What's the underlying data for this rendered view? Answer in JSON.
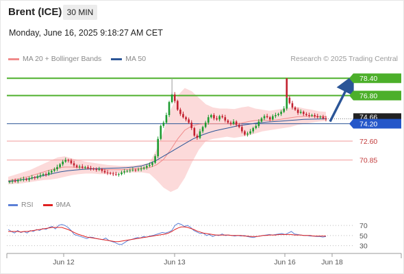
{
  "header": {
    "title": "Brent (ICE)",
    "timeframe": "30 MIN",
    "datetime": "Monday, June 16, 2025 9:18:27 AM CET",
    "credit": "Research © 2025 Trading Central"
  },
  "colors": {
    "candle_up": "#1c9b2f",
    "candle_down": "#c2202f",
    "ma20": "#f08a8a",
    "bb_fill": "#fbd3d3",
    "ma50": "#2b5597",
    "resistance": "#4caf2a",
    "support": "#f29a9a",
    "pivot": "#2b5597",
    "current": "#222222",
    "rsi": "#5b7fd6",
    "rsi_ma": "#e02020",
    "arrow": "#2b5597"
  },
  "chart_data": [
    {
      "type": "candlestick",
      "title": "Brent (ICE)",
      "timeframe": "30 MIN",
      "legend": [
        {
          "name": "MA 20 + Bollinger Bands",
          "color": "#f08a8a"
        },
        {
          "name": "MA 50",
          "color": "#2b5597"
        }
      ],
      "x_tick_labels": [
        "Jun 12",
        "Jun 13",
        "Jun 16",
        "Jun 18"
      ],
      "ylim": [
        67.6,
        79.3
      ],
      "levels": [
        {
          "label": "78.40",
          "value": 78.4,
          "kind": "resistance"
        },
        {
          "label": "76.80",
          "value": 76.8,
          "kind": "resistance"
        },
        {
          "label": "74.66",
          "value": 74.66,
          "kind": "current"
        },
        {
          "label": "74.20",
          "value": 74.2,
          "kind": "pivot"
        },
        {
          "label": "72.60",
          "value": 72.6,
          "kind": "support"
        },
        {
          "label": "70.85",
          "value": 70.85,
          "kind": "support"
        }
      ],
      "projection": {
        "direction": "up",
        "from": 74.4,
        "to": 78.4
      },
      "closes": [
        68.85,
        68.92,
        68.88,
        69.0,
        69.05,
        69.1,
        69.02,
        69.15,
        69.25,
        69.2,
        69.35,
        69.45,
        69.55,
        69.5,
        69.7,
        69.85,
        70.0,
        70.2,
        70.45,
        70.7,
        70.85,
        70.8,
        70.55,
        70.35,
        70.2,
        70.25,
        70.15,
        70.2,
        70.1,
        70.05,
        70.0,
        69.95,
        70.0,
        69.85,
        69.7,
        69.65,
        69.6,
        69.55,
        69.5,
        69.55,
        69.7,
        69.8,
        69.85,
        69.9,
        69.95,
        69.92,
        69.98,
        70.05,
        70.15,
        70.3,
        70.4,
        70.6,
        71.2,
        72.8,
        74.0,
        74.3,
        75.0,
        76.2,
        76.9,
        76.3,
        75.5,
        75.1,
        74.8,
        74.6,
        74.3,
        73.8,
        73.1,
        72.9,
        73.5,
        73.9,
        74.3,
        74.8,
        75.0,
        74.7,
        74.6,
        74.9,
        74.8,
        74.5,
        74.3,
        74.2,
        74.4,
        74.1,
        73.9,
        73.5,
        73.2,
        73.3,
        73.5,
        73.8,
        74.0,
        74.4,
        74.7,
        74.9,
        74.8,
        74.6,
        74.9,
        75.0,
        75.1,
        75.3,
        75.6,
        76.6,
        76.1,
        75.7,
        75.5,
        75.2,
        75.3,
        75.1,
        75.0,
        74.95,
        75.0,
        74.9,
        74.8,
        74.85,
        74.7,
        74.6
      ],
      "last_spike_high": 77.0,
      "bollinger": {
        "upper": [
          69.3,
          69.5,
          69.7,
          69.9,
          70.2,
          70.5,
          70.8,
          71.1,
          71.2,
          71.0,
          70.85,
          70.7,
          70.6,
          70.5,
          70.4,
          70.35,
          70.3,
          70.3,
          70.35,
          70.45,
          70.6,
          71.8,
          73.5,
          75.5,
          76.8,
          77.5,
          77.2,
          76.6,
          76.0,
          75.7,
          75.6,
          75.6,
          75.55,
          75.7,
          75.8,
          75.6,
          75.5,
          75.4,
          75.5,
          75.6,
          75.7,
          75.75,
          75.6,
          75.5,
          75.35,
          75.3
        ],
        "lower": [
          68.6,
          68.65,
          68.7,
          68.8,
          68.9,
          69.0,
          69.05,
          69.15,
          69.3,
          69.45,
          69.55,
          69.6,
          69.6,
          69.55,
          69.55,
          69.6,
          69.65,
          69.7,
          69.7,
          69.7,
          69.6,
          69.0,
          68.3,
          67.9,
          68.2,
          69.2,
          70.6,
          71.8,
          72.6,
          72.8,
          72.9,
          73.0,
          72.9,
          73.0,
          73.1,
          73.3,
          73.5,
          73.6,
          73.7,
          73.8,
          73.9,
          74.1,
          74.2,
          74.3,
          74.4,
          74.45
        ],
        "ma20": [
          68.95,
          69.05,
          69.2,
          69.35,
          69.55,
          69.75,
          69.95,
          70.1,
          70.2,
          70.2,
          70.15,
          70.1,
          70.05,
          70.0,
          69.95,
          69.95,
          69.95,
          70.0,
          70.05,
          70.1,
          70.15,
          70.4,
          70.9,
          71.8,
          72.8,
          73.6,
          74.0,
          74.15,
          74.2,
          74.2,
          74.2,
          74.2,
          74.15,
          74.25,
          74.4,
          74.5,
          74.55,
          74.5,
          74.55,
          74.65,
          74.75,
          74.85,
          74.9,
          74.9,
          74.85,
          74.85
        ]
      },
      "ma50": [
        68.88,
        68.95,
        69.05,
        69.15,
        69.3,
        69.45,
        69.6,
        69.75,
        69.85,
        69.92,
        69.98,
        70.02,
        70.05,
        70.07,
        70.1,
        70.12,
        70.15,
        70.2,
        70.3,
        70.5,
        70.8,
        71.2,
        71.6,
        72.0,
        72.4,
        72.8,
        73.1,
        73.35,
        73.55,
        73.7,
        73.85,
        74.0,
        74.1,
        74.2,
        74.3,
        74.35,
        74.4,
        74.45,
        74.5,
        74.55,
        74.6,
        74.62,
        74.64,
        74.66
      ]
    },
    {
      "type": "line",
      "name": "RSI panel",
      "legend": [
        {
          "name": "RSI",
          "color": "#5b7fd6"
        },
        {
          "name": "9MA",
          "color": "#e02020"
        }
      ],
      "ylim": [
        20,
        85
      ],
      "y_tick_labels": [
        "70",
        "50",
        "30"
      ],
      "series": [
        {
          "name": "RSI",
          "values": [
            62,
            58,
            55,
            60,
            56,
            58,
            55,
            60,
            58,
            62,
            60,
            64,
            62,
            66,
            68,
            63,
            70,
            72,
            70,
            66,
            60,
            52,
            50,
            48,
            46,
            44,
            47,
            46,
            44,
            43,
            42,
            45,
            40,
            38,
            36,
            33,
            32,
            36,
            40,
            42,
            44,
            46,
            45,
            48,
            47,
            49,
            50,
            52,
            54,
            56,
            55,
            57,
            60,
            70,
            74,
            72,
            68,
            70,
            66,
            60,
            57,
            54,
            55,
            50,
            52,
            48,
            51,
            50,
            53,
            50,
            51,
            50,
            49,
            50,
            49,
            50,
            48,
            47,
            46,
            48,
            49,
            50,
            51,
            52,
            51,
            52,
            53,
            54,
            52,
            55,
            58,
            53,
            52,
            51,
            50,
            50,
            49,
            49,
            48,
            48,
            47,
            48
          ]
        },
        {
          "name": "9MA",
          "values": [
            58,
            58,
            58,
            58,
            57,
            58,
            58,
            59,
            60,
            61,
            62,
            63,
            64,
            65,
            66,
            66,
            66,
            66,
            64,
            62,
            59,
            56,
            53,
            51,
            49,
            47,
            46,
            45,
            44,
            43,
            42,
            41,
            40,
            39,
            38,
            38,
            39,
            40,
            41,
            42,
            43,
            44,
            45,
            46,
            47,
            48,
            49,
            50,
            51,
            52,
            53,
            55,
            58,
            62,
            65,
            67,
            67,
            66,
            64,
            62,
            59,
            57,
            55,
            54,
            53,
            52,
            51,
            51,
            51,
            51,
            51,
            50,
            50,
            50,
            50,
            49,
            49,
            48,
            48,
            48,
            49,
            50,
            50,
            51,
            51,
            51,
            52,
            52,
            52,
            52,
            52,
            51,
            51,
            51,
            50,
            50,
            50,
            49,
            49,
            49,
            49,
            49
          ]
        }
      ]
    }
  ]
}
